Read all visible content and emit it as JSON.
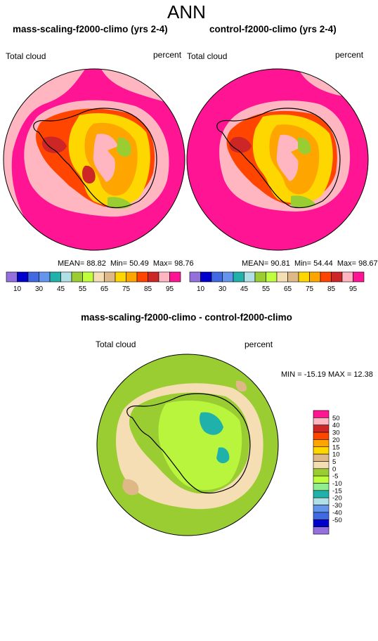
{
  "title": "ANN",
  "panels": [
    {
      "title": "mass-scaling-f2000-climo (yrs 2-4)",
      "variable_label": "Total cloud",
      "units_label": "percent",
      "stats": {
        "mean_label": "MEAN=",
        "mean": "88.82",
        "min_label": "Min=",
        "min": "50.49",
        "max_label": "Max=",
        "max": "98.76"
      }
    },
    {
      "title": "control-f2000-climo (yrs 2-4)",
      "variable_label": "Total cloud",
      "units_label": "percent",
      "stats": {
        "mean_label": "MEAN=",
        "mean": "90.81",
        "min_label": "Min=",
        "min": "54.44",
        "max_label": "Max=",
        "max": "98.67"
      }
    }
  ],
  "diff_panel": {
    "title": "mass-scaling-f2000-climo - control-f2000-climo",
    "variable_label": "Total cloud",
    "units_label": "percent",
    "minmax": "MIN = -15.19  MAX =  12.38"
  },
  "colorbar_abs": {
    "colors": [
      "#9370db",
      "#0000cd",
      "#4169e1",
      "#6495ed",
      "#20b2aa",
      "#b0e0e6",
      "#9acd32",
      "#c0ff3e",
      "#f5deb3",
      "#deb887",
      "#ffd700",
      "#ffa500",
      "#ff4500",
      "#cd2626",
      "#ffb6c1",
      "#ff1493"
    ],
    "labels": [
      "10",
      "30",
      "45",
      "55",
      "65",
      "75",
      "85",
      "95"
    ]
  },
  "colorbar_diff": {
    "colors": [
      "#ff1493",
      "#ffb6c1",
      "#cd2626",
      "#ff4500",
      "#ffa500",
      "#ffd700",
      "#deb887",
      "#f5deb3",
      "#9acd32",
      "#c0ff3e",
      "#90ee90",
      "#20b2aa",
      "#b0e0e6",
      "#6495ed",
      "#4169e1",
      "#0000cd",
      "#9370db"
    ],
    "labels": [
      "50",
      "40",
      "30",
      "20",
      "15",
      "10",
      "5",
      "0",
      "-5",
      "-10",
      "-15",
      "-20",
      "-30",
      "-40",
      "-50"
    ]
  }
}
